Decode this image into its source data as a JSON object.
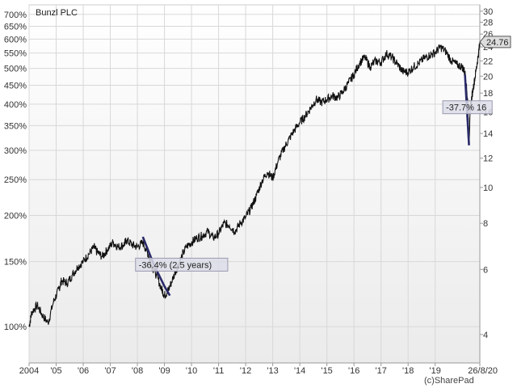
{
  "chart_data": {
    "type": "line",
    "title": "Bunzl PLC",
    "credit": "(c)SharePad",
    "left_scale": "log",
    "left_ticks": [
      "700%",
      "650%",
      "600%",
      "550%",
      "500%",
      "450%",
      "400%",
      "350%",
      "300%",
      "250%",
      "200%",
      "150%",
      "100%"
    ],
    "left_tick_values": [
      700,
      650,
      600,
      550,
      500,
      450,
      400,
      350,
      300,
      250,
      200,
      150,
      100
    ],
    "right_ticks": [
      "30",
      "28",
      "26",
      "24",
      "22",
      "20",
      "18",
      "16",
      "14",
      "12",
      "10",
      "8",
      "6",
      "4"
    ],
    "right_tick_values": [
      30,
      28,
      26,
      24,
      22,
      20,
      18,
      16,
      14,
      12,
      10,
      8,
      6,
      4
    ],
    "ylim_price": [
      3.5,
      30
    ],
    "x_labels": [
      "2004",
      "'05",
      "'06",
      "'07",
      "'08",
      "'09",
      "'10",
      "'11",
      "'12",
      "'13",
      "'14",
      "'15",
      "'16",
      "'17",
      "'18",
      "'19",
      "26/8/20"
    ],
    "x_label_years": [
      2004,
      2005,
      2006,
      2007,
      2008,
      2009,
      2010,
      2011,
      2012,
      2013,
      2014,
      2015,
      2016,
      2017,
      2018,
      2019,
      2020.65
    ],
    "xlim": [
      2004,
      2020.65
    ],
    "grid": true,
    "series": [
      {
        "color": "#111111",
        "x": [
          2004.0,
          2004.1,
          2004.3,
          2004.5,
          2004.7,
          2004.9,
          2005.1,
          2005.2,
          2005.4,
          2005.6,
          2005.8,
          2006.0,
          2006.2,
          2006.4,
          2006.5,
          2006.7,
          2006.9,
          2007.1,
          2007.3,
          2007.5,
          2007.6,
          2007.8,
          2008.0,
          2008.2,
          2008.4,
          2008.5,
          2008.7,
          2008.9,
          2009.0,
          2009.1,
          2009.2,
          2009.4,
          2009.6,
          2009.8,
          2010.0,
          2010.2,
          2010.4,
          2010.6,
          2010.8,
          2011.0,
          2011.2,
          2011.4,
          2011.6,
          2011.8,
          2012.0,
          2012.2,
          2012.4,
          2012.6,
          2012.8,
          2013.0,
          2013.2,
          2013.4,
          2013.6,
          2013.8,
          2014.0,
          2014.2,
          2014.4,
          2014.6,
          2014.8,
          2015.0,
          2015.2,
          2015.4,
          2015.6,
          2015.8,
          2016.0,
          2016.2,
          2016.4,
          2016.6,
          2016.8,
          2017.0,
          2017.2,
          2017.4,
          2017.6,
          2017.8,
          2018.0,
          2018.2,
          2018.4,
          2018.6,
          2018.8,
          2019.0,
          2019.2,
          2019.4,
          2019.6,
          2019.8,
          2020.0,
          2020.1,
          2020.2,
          2020.25,
          2020.3,
          2020.4,
          2020.5,
          2020.6,
          2020.65
        ],
        "y": [
          4.2,
          4.6,
          4.8,
          4.5,
          4.3,
          4.9,
          5.3,
          5.6,
          5.5,
          5.8,
          6.1,
          6.3,
          6.6,
          6.9,
          6.7,
          6.5,
          6.8,
          7.1,
          6.9,
          7.0,
          7.2,
          7.0,
          6.9,
          7.1,
          6.6,
          6.2,
          5.8,
          5.3,
          5.1,
          5.2,
          5.4,
          5.9,
          6.4,
          6.9,
          7.1,
          7.3,
          7.4,
          7.6,
          7.3,
          7.5,
          8.0,
          7.9,
          7.6,
          8.0,
          8.3,
          8.8,
          9.5,
          10.4,
          11.0,
          10.6,
          11.8,
          12.7,
          13.5,
          14.3,
          15.0,
          15.6,
          16.4,
          17.3,
          17.0,
          17.3,
          17.7,
          17.5,
          18.2,
          19.2,
          20.2,
          21.7,
          22.5,
          21.2,
          22.0,
          21.8,
          23.0,
          22.5,
          21.6,
          20.6,
          20.5,
          21.2,
          21.7,
          22.4,
          22.8,
          23.2,
          24.0,
          23.3,
          22.0,
          21.5,
          21.2,
          20.5,
          17.3,
          13.3,
          16.5,
          18.5,
          20.5,
          23.0,
          24.76
        ]
      }
    ],
    "last_price_label": "24.76",
    "annotations": [
      {
        "text": "-36.4% (2.5 years)",
        "x_year": 2008.05,
        "price": 6.15
      },
      {
        "text": "-37.7% 16",
        "x_year": 2019.4,
        "price": 16.4
      }
    ],
    "drawdown_lines": [
      {
        "x": [
          2008.2,
          2008.6,
          2009.0,
          2009.2
        ],
        "y": [
          7.35,
          6.2,
          5.4,
          5.1
        ]
      },
      {
        "x": [
          2020.1,
          2020.25
        ],
        "y": [
          20.2,
          13.0
        ]
      }
    ]
  }
}
